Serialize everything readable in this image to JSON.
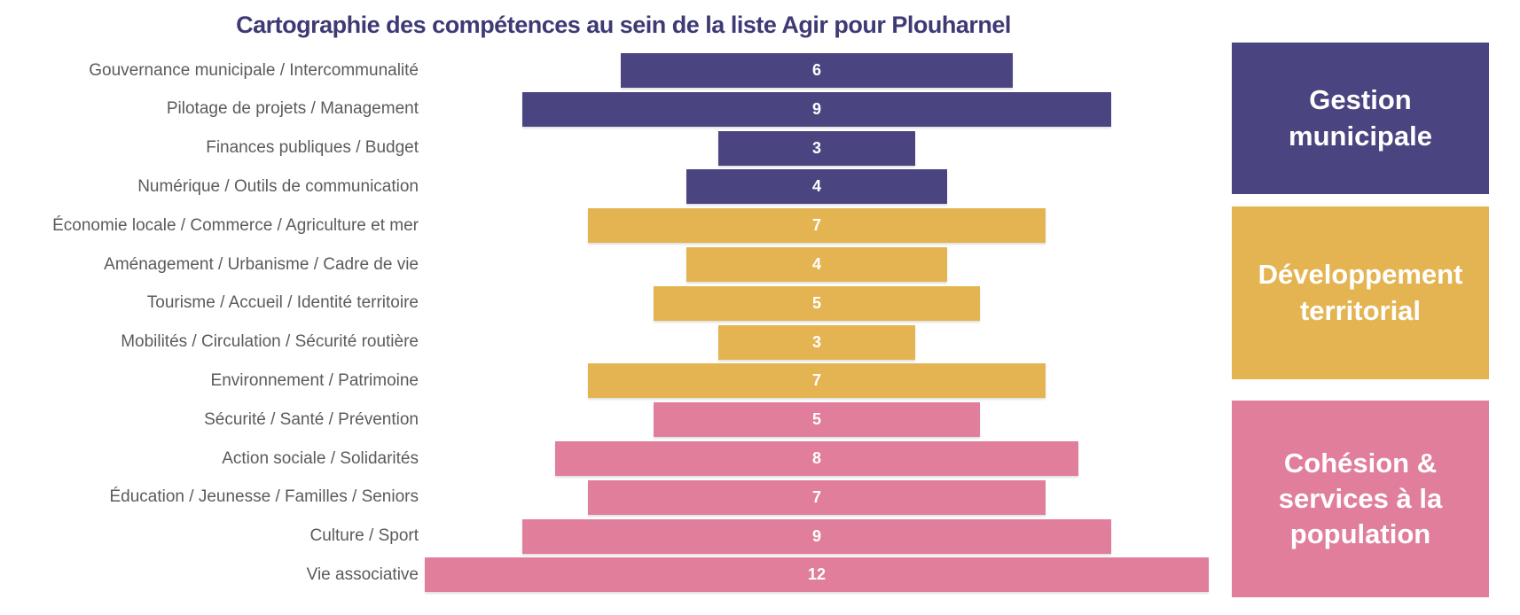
{
  "page": {
    "background": "#FFFFFF"
  },
  "chart_data": {
    "type": "bar",
    "orientation": "horizontal_centered",
    "title": "Cartographie des compétences au sein de la liste Agir pour Plouharnel",
    "title_color": "#3E3A75",
    "xlim": [
      0,
      12
    ],
    "grid": false,
    "data_labels": "inside_center",
    "data_label_color": "#FFFFFF",
    "category_label_color": "#5B5B5F",
    "legend_position": "right",
    "categories": [
      "Gouvernance municipale / Intercommunalité",
      "Pilotage de projets / Management",
      "Finances publiques / Budget",
      "Numérique / Outils de communication",
      "Économie locale / Commerce / Agriculture et mer",
      "Aménagement / Urbanisme / Cadre de vie",
      "Tourisme / Accueil / Identité territoire",
      "Mobilités / Circulation / Sécurité routière",
      "Environnement / Patrimoine",
      "Sécurité / Santé / Prévention",
      "Action sociale / Solidarités",
      "Éducation / Jeunesse / Familles / Seniors",
      "Culture / Sport",
      "Vie associative"
    ],
    "values": [
      6,
      9,
      3,
      4,
      7,
      4,
      5,
      3,
      7,
      5,
      8,
      7,
      9,
      12
    ],
    "groups": [
      {
        "name": "Gestion municipale",
        "color": "#4A4580",
        "row_span": [
          0,
          3
        ]
      },
      {
        "name": "Développement territorial",
        "color": "#E4B452",
        "row_span": [
          4,
          8
        ]
      },
      {
        "name": "Cohésion & services à la population",
        "color": "#E07E9C",
        "row_span": [
          9,
          13
        ]
      }
    ]
  },
  "rows": [
    {
      "label": "Gouvernance municipale / Intercommunalité",
      "value": 6,
      "group": 0
    },
    {
      "label": "Pilotage de projets / Management",
      "value": 9,
      "group": 0
    },
    {
      "label": "Finances publiques / Budget",
      "value": 3,
      "group": 0
    },
    {
      "label": "Numérique / Outils de communication",
      "value": 4,
      "group": 0
    },
    {
      "label": "Économie locale / Commerce / Agriculture et mer",
      "value": 7,
      "group": 1
    },
    {
      "label": "Aménagement / Urbanisme / Cadre de vie",
      "value": 4,
      "group": 1
    },
    {
      "label": "Tourisme / Accueil / Identité territoire",
      "value": 5,
      "group": 1
    },
    {
      "label": "Mobilités / Circulation / Sécurité routière",
      "value": 3,
      "group": 1
    },
    {
      "label": "Environnement / Patrimoine",
      "value": 7,
      "group": 1
    },
    {
      "label": "Sécurité / Santé / Prévention",
      "value": 5,
      "group": 2
    },
    {
      "label": "Action sociale / Solidarités",
      "value": 8,
      "group": 2
    },
    {
      "label": "Éducation / Jeunesse / Familles / Seniors",
      "value": 7,
      "group": 2
    },
    {
      "label": "Culture / Sport",
      "value": 9,
      "group": 2
    },
    {
      "label": "Vie associative",
      "value": 12,
      "group": 2
    }
  ]
}
